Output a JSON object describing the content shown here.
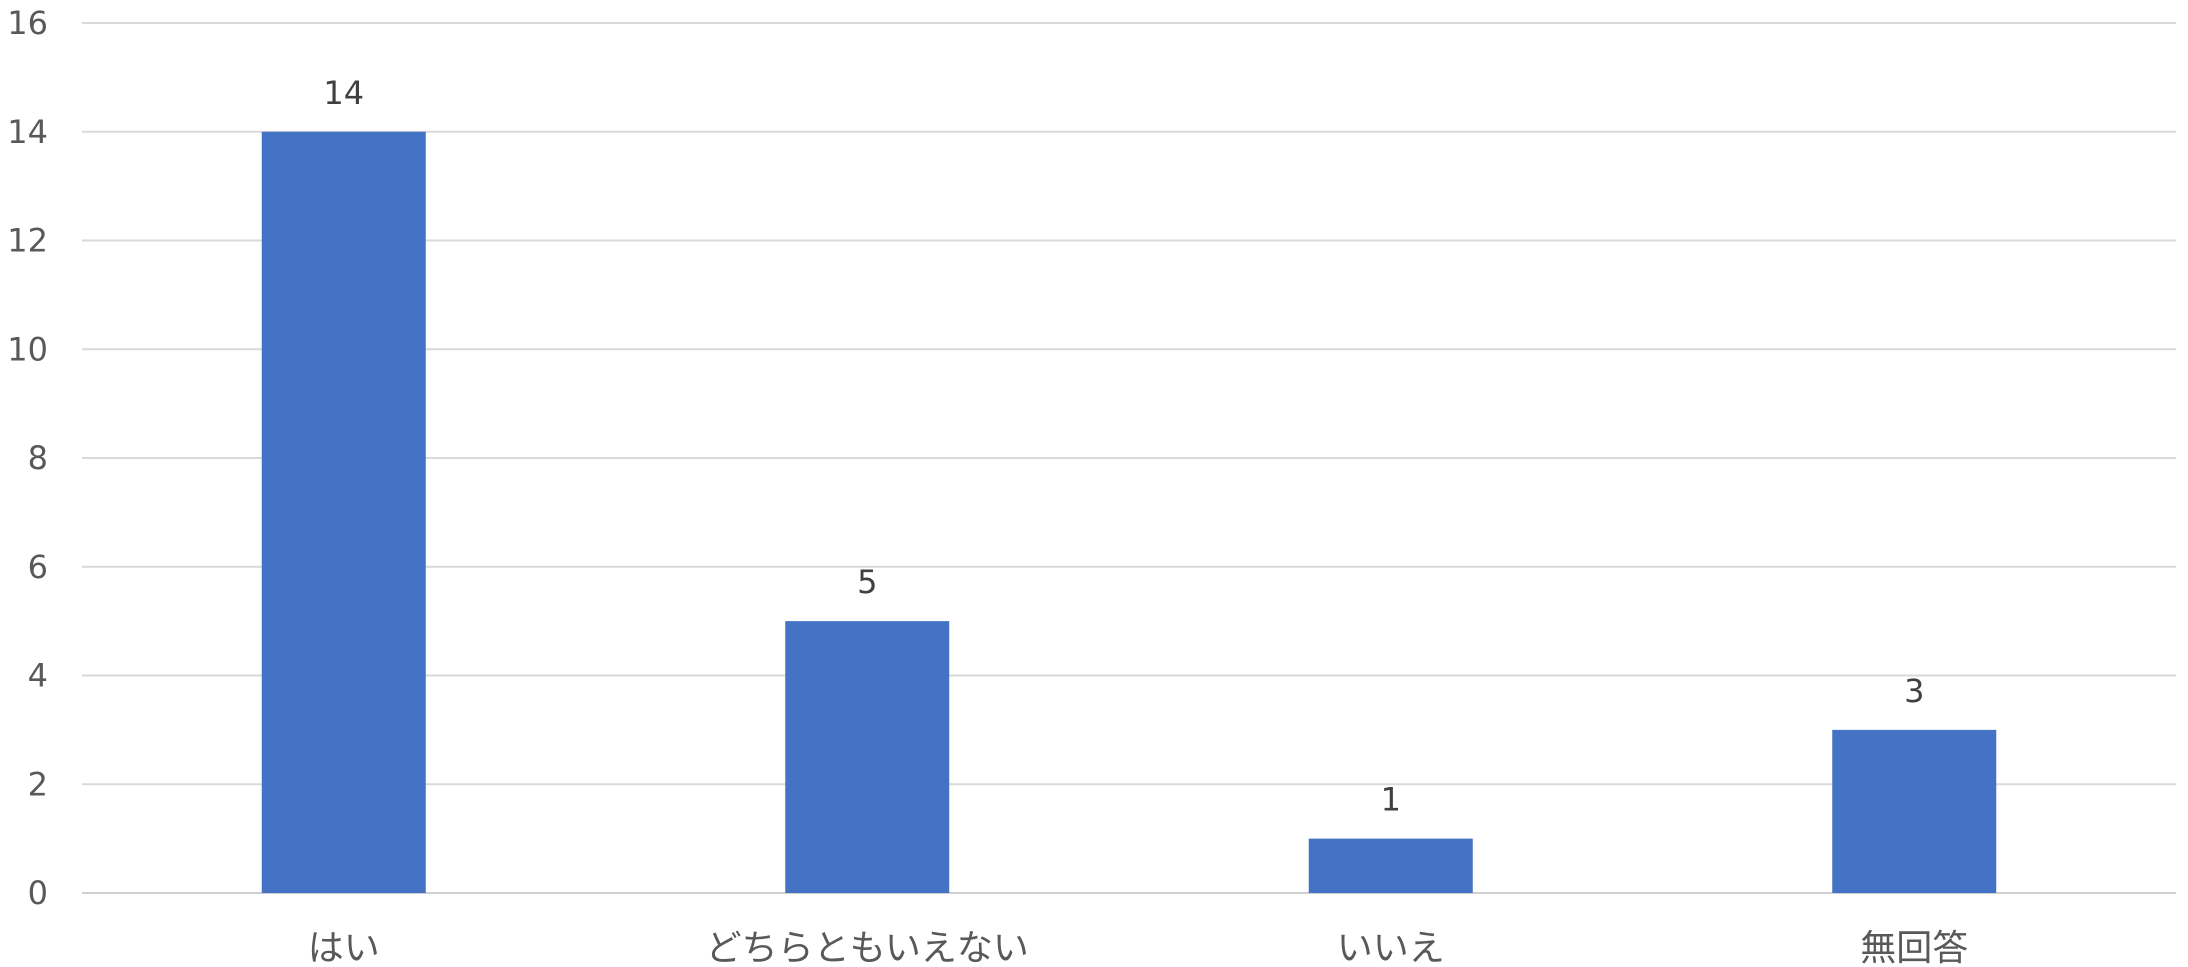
{
  "chart_data": {
    "type": "bar",
    "categories": [
      "はい",
      "どちらともいえない",
      "いいえ",
      "無回答"
    ],
    "values": [
      14,
      5,
      1,
      3
    ],
    "title": "",
    "xlabel": "",
    "ylabel": "",
    "ylim": [
      0,
      16
    ],
    "y_ticks": [
      "0",
      "2",
      "4",
      "6",
      "8",
      "10",
      "12",
      "14",
      "16"
    ],
    "data_labels": [
      "14",
      "5",
      "1",
      "3"
    ],
    "grid": true,
    "legend": "none",
    "colors": {
      "bar": "#4472c4",
      "grid": "#d9d9d9",
      "text": "#595959"
    }
  }
}
